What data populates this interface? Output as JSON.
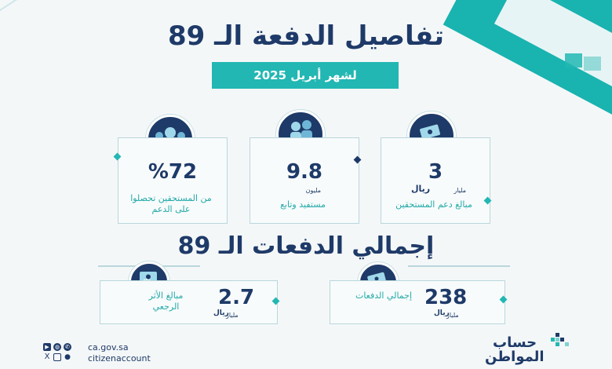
{
  "title": "تفاصيل الدفعة الـ 89",
  "subtitle": "لشهر أبريل 2025",
  "cards": [
    {
      "value": "%72",
      "unit": "",
      "label": "من المستحقين تحصلوا على الدعم",
      "icon": "users-circle-icon"
    },
    {
      "value": "9.8",
      "unit": "مليون",
      "label": "مستفيد وتابع",
      "icon": "family-icon"
    },
    {
      "value": "3",
      "unit": "مليار",
      "label": "مبالغ دعم المستحقين",
      "icon": "money-envelope-icon"
    }
  ],
  "total_title": "إجمالي الدفعات الـ 89",
  "totals": [
    {
      "value": "2.7",
      "unit": "مليار",
      "label": "مبالغ الأثر الرجعي",
      "icon": "hand-money-icon"
    },
    {
      "value": "238",
      "unit": "مليار",
      "label": "إجمالي الدفعات",
      "icon": "money-envelope-icon"
    }
  ],
  "footer": {
    "website": "ca.gov.sa",
    "handle": "citizenaccount",
    "logo_line1": "حساب",
    "logo_line2": "المواطن"
  },
  "colors": {
    "navy": "#1e3a68",
    "teal": "#22b7b3"
  }
}
